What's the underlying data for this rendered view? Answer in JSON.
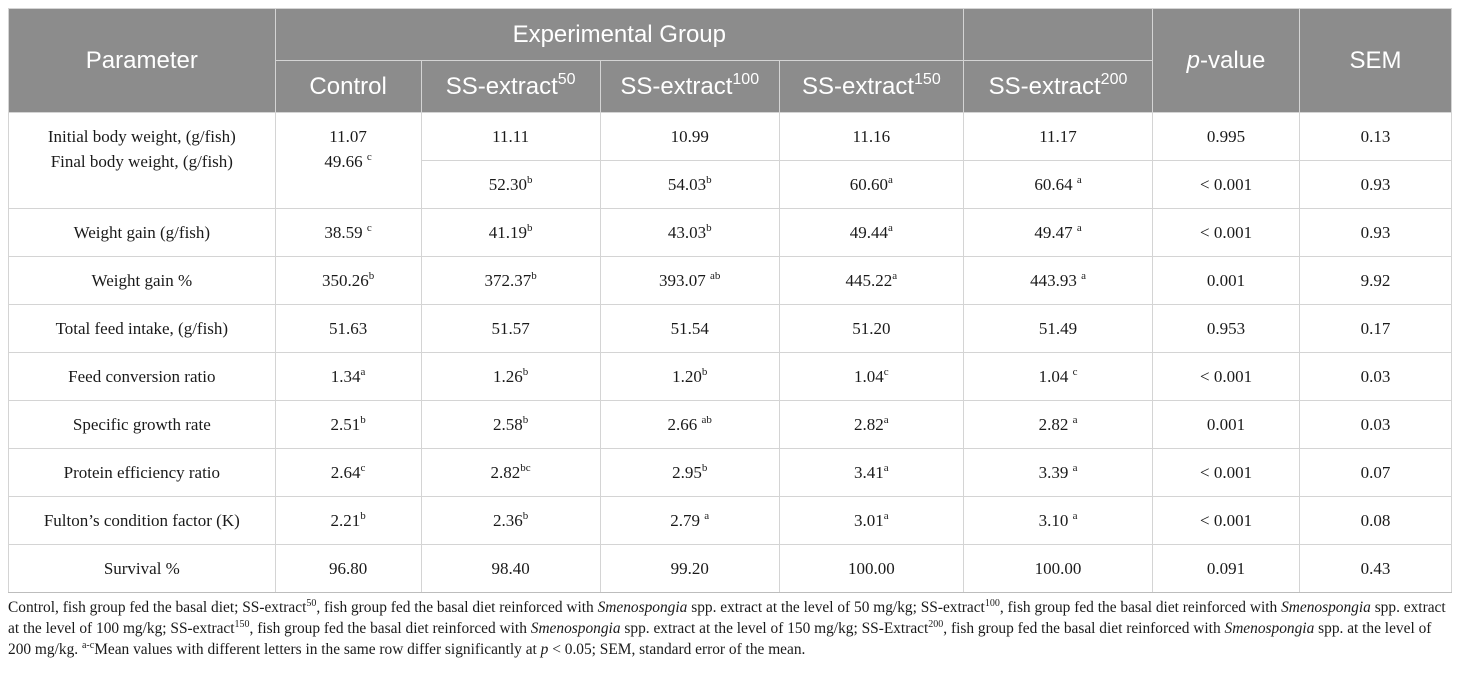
{
  "header": {
    "parameter": "Parameter",
    "group": "Experimental Group",
    "p_value_italic": "p",
    "p_value_rest": "-value",
    "sem": "SEM",
    "cols": [
      {
        "base": "Control",
        "sup": ""
      },
      {
        "base": "SS-extract",
        "sup": "50"
      },
      {
        "base": "SS-extract",
        "sup": "100"
      },
      {
        "base": "SS-extract",
        "sup": "150"
      },
      {
        "base": "SS-extract",
        "sup": "200"
      }
    ]
  },
  "rows": [
    {
      "label": "Initial body weight, (g/fish)",
      "label2": "Final body weight, (g/fish)",
      "control": "11.07",
      "control_sup": "",
      "control2": "49.66 ",
      "control2_sup": "c",
      "vals": [
        {
          "v": "11.11",
          "s": ""
        },
        {
          "v": "10.99",
          "s": ""
        },
        {
          "v": "11.16",
          "s": ""
        },
        {
          "v": "11.17",
          "s": ""
        }
      ],
      "p": "0.995",
      "sem": "0.13"
    },
    {
      "vals": [
        {
          "v": "52.30",
          "s": "b"
        },
        {
          "v": "54.03",
          "s": "b"
        },
        {
          "v": "60.60",
          "s": "a"
        },
        {
          "v": "60.64 ",
          "s": "a"
        }
      ],
      "p": "< 0.001",
      "sem": "0.93"
    },
    {
      "label": "Weight gain (g/fish)",
      "control": "38.59 ",
      "control_sup": "c",
      "vals": [
        {
          "v": "41.19",
          "s": "b"
        },
        {
          "v": "43.03",
          "s": "b"
        },
        {
          "v": "49.44",
          "s": "a"
        },
        {
          "v": "49.47 ",
          "s": "a"
        }
      ],
      "p": "< 0.001",
      "sem": "0.93"
    },
    {
      "label": "Weight gain %",
      "control": "350.26",
      "control_sup": "b",
      "vals": [
        {
          "v": "372.37",
          "s": "b"
        },
        {
          "v": "393.07 ",
          "s": "ab"
        },
        {
          "v": "445.22",
          "s": "a"
        },
        {
          "v": "443.93 ",
          "s": "a"
        }
      ],
      "p": "0.001",
      "sem": "9.92"
    },
    {
      "label": "Total feed intake, (g/fish)",
      "control": "51.63",
      "control_sup": "",
      "vals": [
        {
          "v": "51.57",
          "s": ""
        },
        {
          "v": "51.54",
          "s": ""
        },
        {
          "v": "51.20",
          "s": ""
        },
        {
          "v": "51.49",
          "s": ""
        }
      ],
      "p": "0.953",
      "sem": "0.17"
    },
    {
      "label": "Feed conversion ratio",
      "control": "1.34",
      "control_sup": "a",
      "vals": [
        {
          "v": "1.26",
          "s": "b"
        },
        {
          "v": "1.20",
          "s": "b"
        },
        {
          "v": "1.04",
          "s": "c"
        },
        {
          "v": "1.04 ",
          "s": "c"
        }
      ],
      "p": "< 0.001",
      "sem": "0.03"
    },
    {
      "label": "Specific growth rate",
      "control": "2.51",
      "control_sup": "b",
      "vals": [
        {
          "v": "2.58",
          "s": "b"
        },
        {
          "v": "2.66 ",
          "s": "ab"
        },
        {
          "v": "2.82",
          "s": "a"
        },
        {
          "v": "2.82 ",
          "s": "a"
        }
      ],
      "p": "0.001",
      "sem": "0.03"
    },
    {
      "label": "Protein efficiency ratio",
      "control": "2.64",
      "control_sup": "c",
      "vals": [
        {
          "v": "2.82",
          "s": "bc"
        },
        {
          "v": "2.95",
          "s": "b"
        },
        {
          "v": "3.41",
          "s": "a"
        },
        {
          "v": "3.39 ",
          "s": "a"
        }
      ],
      "p": "< 0.001",
      "sem": "0.07"
    },
    {
      "label": "Fulton’s condition factor (K)",
      "control": "2.21",
      "control_sup": "b",
      "vals": [
        {
          "v": "2.36",
          "s": "b"
        },
        {
          "v": "2.79 ",
          "s": "a"
        },
        {
          "v": "3.01",
          "s": "a"
        },
        {
          "v": "3.10 ",
          "s": "a"
        }
      ],
      "p": "< 0.001",
      "sem": "0.08"
    },
    {
      "label": "Survival %",
      "control": "96.80",
      "control_sup": "",
      "vals": [
        {
          "v": "98.40",
          "s": ""
        },
        {
          "v": "99.20",
          "s": ""
        },
        {
          "v": "100.00",
          "s": ""
        },
        {
          "v": "100.00",
          "s": ""
        }
      ],
      "p": "0.091",
      "sem": "0.43"
    }
  ],
  "footnote": {
    "t1": "Control, fish group fed the basal diet; SS-extract",
    "s1": "50",
    "t2": ", fish group fed the basal diet reinforced with ",
    "genus": "Smenospongia",
    "t3": " spp. extract at the level of 50 mg/kg; SS-extract",
    "s2": "100",
    "t4": ", fish group fed the basal diet reinforced with ",
    "t5": " spp. extract at the level of 100 mg/kg; SS-extract",
    "s3": "150",
    "t6": ", fish group fed the basal diet reinforced with ",
    "t7": " spp. extract at the level of 150 mg/kg; SS-Extract",
    "s4": "200",
    "t8": ", fish group fed the basal diet reinforced with ",
    "t9": " spp. at the level of 200 mg/kg. ",
    "s5": "a-c",
    "t10": "Mean values with different letters in the same row differ significantly at ",
    "p_italic": "p",
    "t11": " < 0.05; SEM, standard error of the mean."
  }
}
